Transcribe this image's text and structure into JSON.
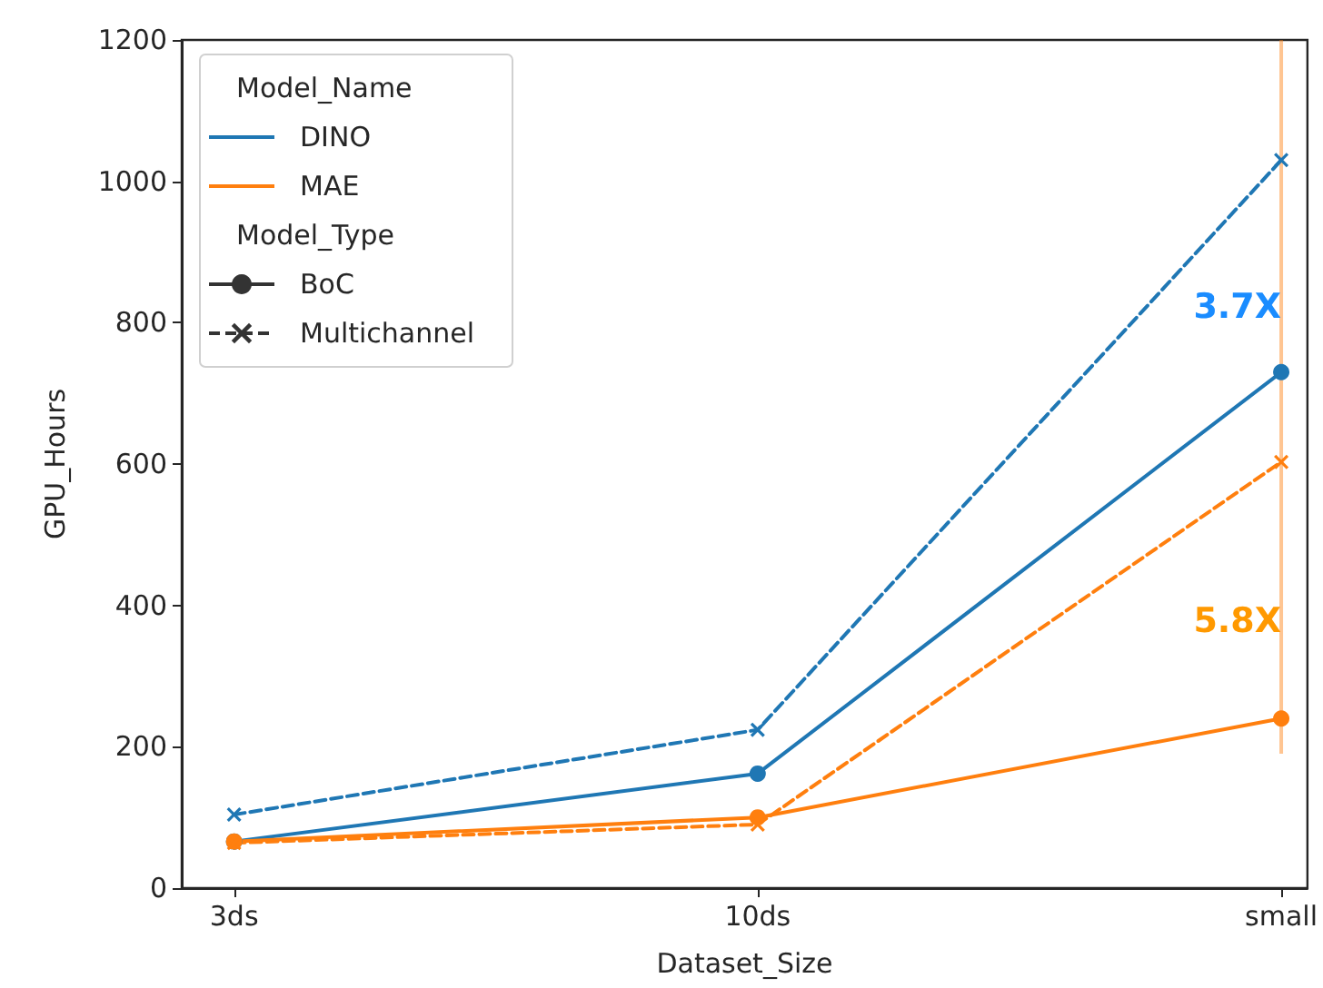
{
  "chart_data": {
    "type": "line",
    "xlabel": "Dataset_Size",
    "ylabel": "GPU_Hours",
    "categories": [
      "3ds",
      "10ds",
      "small"
    ],
    "ylim": [
      0,
      1200
    ],
    "yticks": [
      0,
      200,
      400,
      600,
      800,
      1000,
      1200
    ],
    "grid": false,
    "legend": "top left",
    "legend_title": [
      "Model_Name",
      "Model_Type"
    ],
    "series": [
      {
        "name": "DINO",
        "color": "#1f77b4",
        "values": [
          66,
          162,
          730
        ],
        "marker": "circle",
        "line_style": "solid"
      },
      {
        "color": "#1f77b4",
        "values": [
          104,
          224,
          1030
        ],
        "marker": "cross",
        "line_style": "dashed"
      },
      {
        "name": "MAE",
        "color": "#ff7f0e",
        "values": [
          66,
          100,
          240
        ],
        "marker": "circle",
        "line_style": "solid",
        "errors": [
          null,
          null,
          [
            190,
            1200
          ]
        ]
      },
      {
        "color": "#ff7f0e",
        "values": [
          64,
          90,
          603
        ],
        "marker": "cross",
        "line_style": "dashed"
      },
      {
        "name": "BoC",
        "color": "#333333",
        "values": [
          null,
          null,
          null
        ],
        "marker": "circle",
        "line_style": "solid"
      },
      {
        "name": "Multichannel",
        "color": "#333333",
        "values": [
          null,
          null,
          null
        ],
        "marker": "cross",
        "line_style": "dashed"
      }
    ],
    "annotations": [
      "3.7X",
      "5.8X"
    ]
  }
}
